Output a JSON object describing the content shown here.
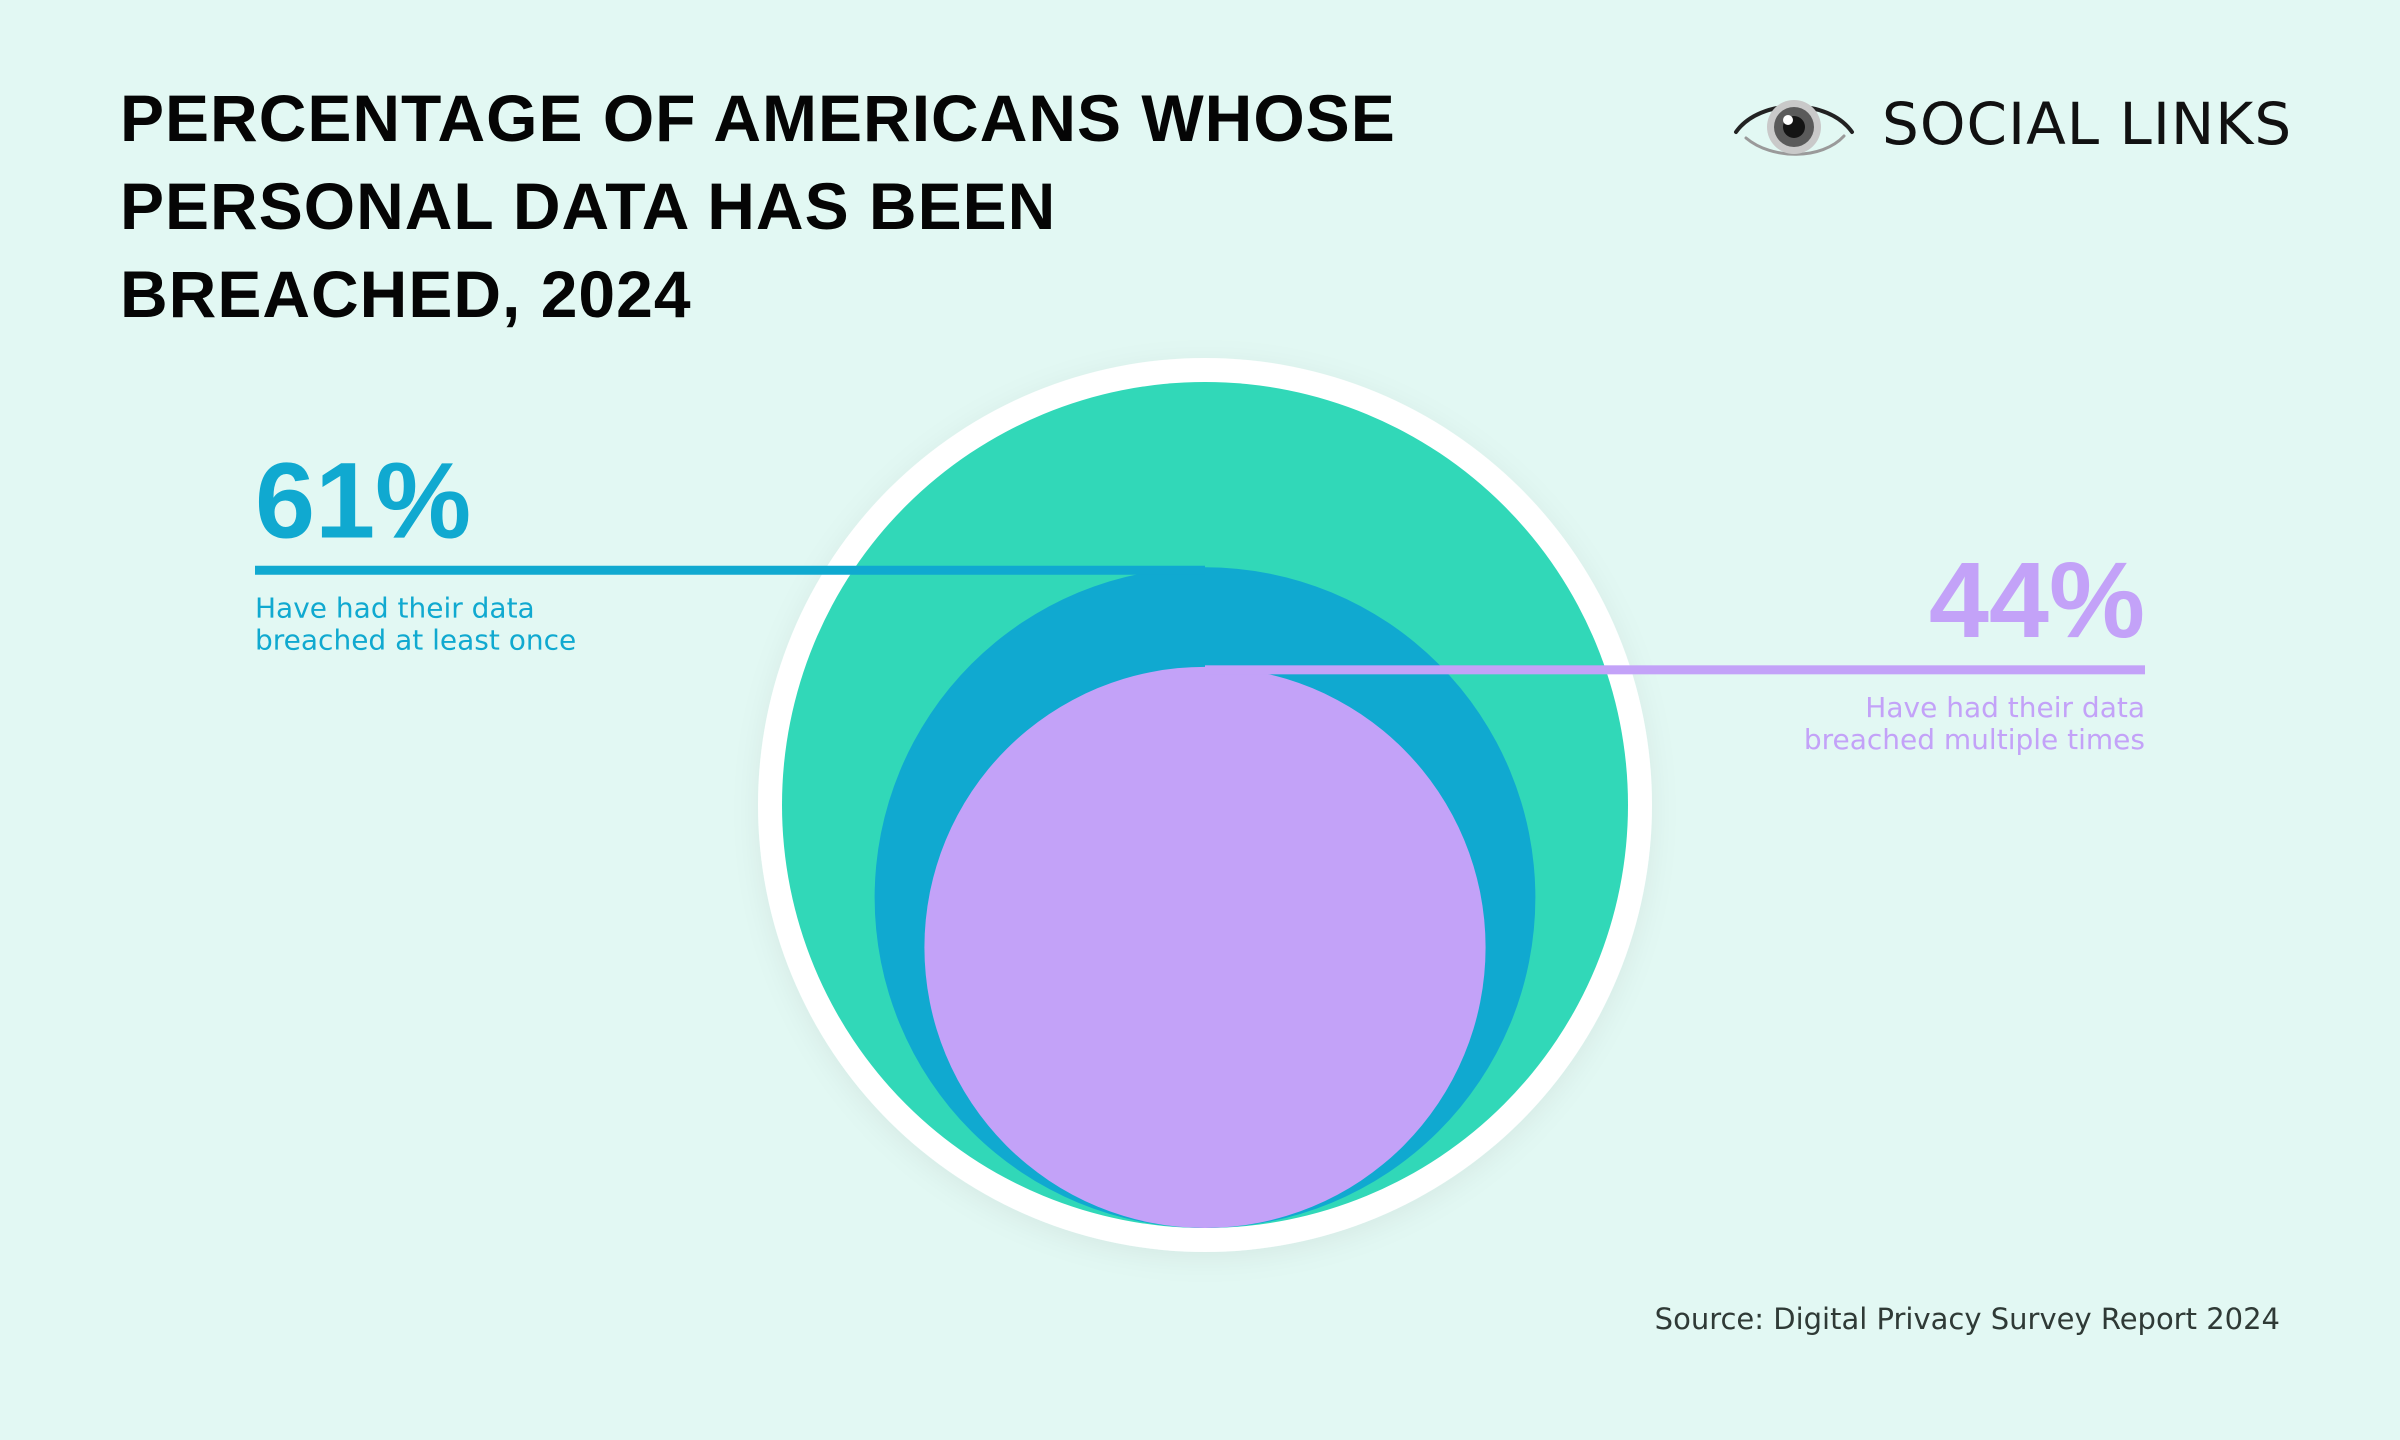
{
  "title": "PERCENTAGE OF AMERICANS WHOSE PERSONAL DATA HAS BEEN BREACHED, 2024",
  "brand": {
    "name": "SOCIAL LINKS",
    "icon": "eye-icon"
  },
  "source": "Source: Digital Privacy Survey Report 2024",
  "colors": {
    "background": "#e2f8f3",
    "outer_ring": "#ffffff",
    "all_americans": "#31d8b8",
    "breached_once": "#10a9d0",
    "breached_multiple": "#c3a2f8",
    "title": "#050505"
  },
  "chart_data": {
    "type": "nested-circle",
    "title": "PERCENTAGE OF AMERICANS WHOSE PERSONAL DATA HAS BEEN BREACHED, 2024",
    "base_value": 100,
    "series": [
      {
        "name": "Have had their data breached at least once",
        "value": 61,
        "value_label": "61%",
        "description_lines": [
          "Have had their data",
          "breached at least once"
        ],
        "color": "#10a9d0",
        "label_side": "left"
      },
      {
        "name": "Have had their data breached multiple times",
        "value": 44,
        "value_label": "44%",
        "description_lines": [
          "Have had their data",
          "breached multiple times"
        ],
        "color": "#c3a2f8",
        "label_side": "right"
      }
    ]
  }
}
